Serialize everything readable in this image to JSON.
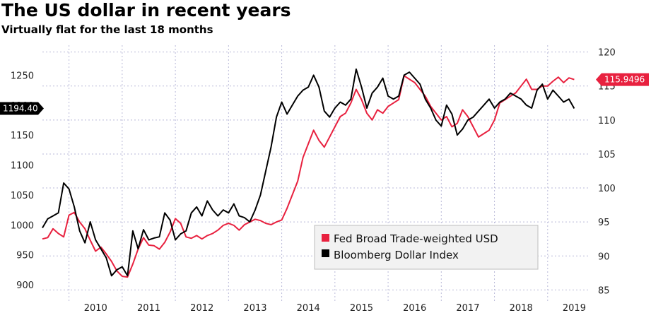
{
  "title": "The US dollar in recent years",
  "subtitle": "Virtually flat for the last 18 months",
  "colors": {
    "fed": "#e8213f",
    "bbdxy": "#000000",
    "grid": "#b9b9d8"
  },
  "chart_data": {
    "type": "line",
    "title": "The US dollar in recent years",
    "subtitle": "Virtually flat for the last 18 months",
    "x_ticks": [
      "2010",
      "2011",
      "2012",
      "2013",
      "2014",
      "2015",
      "2016",
      "2017",
      "2018",
      "2019"
    ],
    "left_axis": {
      "ticks": [
        "900",
        "950",
        "1000",
        "1050",
        "1100",
        "1150",
        "1200",
        "1250"
      ],
      "ylim": [
        880,
        1300
      ]
    },
    "right_axis": {
      "ticks": [
        "85",
        "90",
        "95",
        "100",
        "105",
        "110",
        "115",
        "120"
      ],
      "ylim": [
        84,
        121
      ]
    },
    "grid": true,
    "legend_position": "bottom-right",
    "series": [
      {
        "name": "Fed Broad Trade-weighted USD",
        "axis": "right",
        "color": "#e8213f",
        "last_value_label": "115.9496",
        "x": [
          2009.5,
          2009.6,
          2009.7,
          2009.8,
          2009.9,
          2010.0,
          2010.1,
          2010.2,
          2010.3,
          2010.4,
          2010.5,
          2010.6,
          2010.7,
          2010.8,
          2010.9,
          2011.0,
          2011.1,
          2011.2,
          2011.3,
          2011.4,
          2011.5,
          2011.6,
          2011.7,
          2011.8,
          2011.9,
          2012.0,
          2012.1,
          2012.2,
          2012.3,
          2012.4,
          2012.5,
          2012.6,
          2012.7,
          2012.8,
          2012.9,
          2013.0,
          2013.1,
          2013.2,
          2013.3,
          2013.4,
          2013.5,
          2013.6,
          2013.7,
          2013.8,
          2013.9,
          2014.0,
          2014.1,
          2014.2,
          2014.3,
          2014.4,
          2014.5,
          2014.6,
          2014.7,
          2014.8,
          2014.9,
          2015.0,
          2015.1,
          2015.2,
          2015.3,
          2015.4,
          2015.5,
          2015.6,
          2015.7,
          2015.8,
          2015.9,
          2016.0,
          2016.1,
          2016.2,
          2016.3,
          2016.4,
          2016.5,
          2016.6,
          2016.7,
          2016.8,
          2016.9,
          2017.0,
          2017.1,
          2017.2,
          2017.3,
          2017.4,
          2017.5,
          2017.6,
          2017.7,
          2017.8,
          2017.9,
          2018.0,
          2018.1,
          2018.2,
          2018.3,
          2018.4,
          2018.5,
          2018.6,
          2018.7,
          2018.8,
          2018.9,
          2019.0,
          2019.1,
          2019.2,
          2019.3,
          2019.4,
          2019.5
        ],
        "values": [
          92.5,
          92.7,
          94.0,
          93.3,
          92.8,
          96.0,
          96.4,
          95.0,
          94.0,
          92.3,
          90.7,
          91.3,
          90.3,
          89.2,
          87.8,
          87.0,
          86.9,
          88.8,
          91.0,
          92.7,
          91.6,
          91.5,
          91.0,
          92.0,
          93.5,
          95.5,
          94.8,
          92.8,
          92.6,
          93.0,
          92.5,
          93.0,
          93.3,
          93.8,
          94.5,
          94.8,
          94.5,
          93.8,
          94.6,
          95.0,
          95.4,
          95.2,
          94.8,
          94.6,
          95.0,
          95.3,
          97.0,
          99.0,
          101.0,
          104.5,
          106.5,
          108.5,
          107.0,
          106.0,
          107.5,
          109.0,
          110.5,
          111.0,
          112.5,
          114.5,
          113.0,
          111.0,
          110.0,
          111.5,
          111.0,
          112.0,
          112.5,
          113.0,
          116.5,
          116.0,
          115.5,
          114.5,
          113.5,
          112.0,
          111.0,
          110.0,
          110.5,
          109.0,
          109.5,
          111.5,
          110.5,
          109.0,
          107.5,
          108.0,
          108.5,
          110.0,
          112.5,
          113.0,
          113.5,
          114.0,
          115.0,
          116.0,
          114.5,
          114.5,
          115.0,
          115.0,
          115.7,
          116.3,
          115.5,
          116.2,
          115.95
        ]
      },
      {
        "name": "Bloomberg Dollar Index",
        "axis": "left",
        "color": "#000000",
        "last_value_label": "1194.40",
        "x": [
          2009.5,
          2009.6,
          2009.7,
          2009.8,
          2009.9,
          2010.0,
          2010.1,
          2010.2,
          2010.3,
          2010.4,
          2010.5,
          2010.6,
          2010.7,
          2010.8,
          2010.9,
          2011.0,
          2011.1,
          2011.2,
          2011.3,
          2011.4,
          2011.5,
          2011.6,
          2011.7,
          2011.8,
          2011.9,
          2012.0,
          2012.1,
          2012.2,
          2012.3,
          2012.4,
          2012.5,
          2012.6,
          2012.7,
          2012.8,
          2012.9,
          2013.0,
          2013.1,
          2013.2,
          2013.3,
          2013.4,
          2013.5,
          2013.6,
          2013.7,
          2013.8,
          2013.9,
          2014.0,
          2014.1,
          2014.2,
          2014.3,
          2014.4,
          2014.5,
          2014.6,
          2014.7,
          2014.8,
          2014.9,
          2015.0,
          2015.1,
          2015.2,
          2015.3,
          2015.4,
          2015.5,
          2015.6,
          2015.7,
          2015.8,
          2015.9,
          2016.0,
          2016.1,
          2016.2,
          2016.3,
          2016.4,
          2016.5,
          2016.6,
          2016.7,
          2016.8,
          2016.9,
          2017.0,
          2017.1,
          2017.2,
          2017.3,
          2017.4,
          2017.5,
          2017.6,
          2017.7,
          2017.8,
          2017.9,
          2018.0,
          2018.1,
          2018.2,
          2018.3,
          2018.4,
          2018.5,
          2018.6,
          2018.7,
          2018.8,
          2018.9,
          2019.0,
          2019.1,
          2019.2,
          2019.3,
          2019.4,
          2019.5
        ],
        "values": [
          995,
          1010,
          1015,
          1020,
          1070,
          1060,
          1030,
          990,
          970,
          1005,
          975,
          960,
          945,
          915,
          925,
          930,
          915,
          990,
          960,
          992,
          975,
          978,
          980,
          1020,
          1008,
          975,
          985,
          990,
          1020,
          1030,
          1015,
          1040,
          1025,
          1015,
          1025,
          1020,
          1035,
          1015,
          1012,
          1005,
          1025,
          1050,
          1090,
          1130,
          1180,
          1205,
          1185,
          1200,
          1215,
          1225,
          1230,
          1250,
          1230,
          1190,
          1180,
          1195,
          1205,
          1200,
          1210,
          1260,
          1230,
          1195,
          1220,
          1230,
          1245,
          1215,
          1210,
          1215,
          1250,
          1255,
          1245,
          1235,
          1210,
          1195,
          1175,
          1165,
          1200,
          1185,
          1150,
          1160,
          1175,
          1180,
          1190,
          1200,
          1210,
          1195,
          1205,
          1210,
          1220,
          1215,
          1210,
          1200,
          1195,
          1225,
          1235,
          1210,
          1225,
          1215,
          1205,
          1210,
          1194.4
        ]
      }
    ]
  }
}
